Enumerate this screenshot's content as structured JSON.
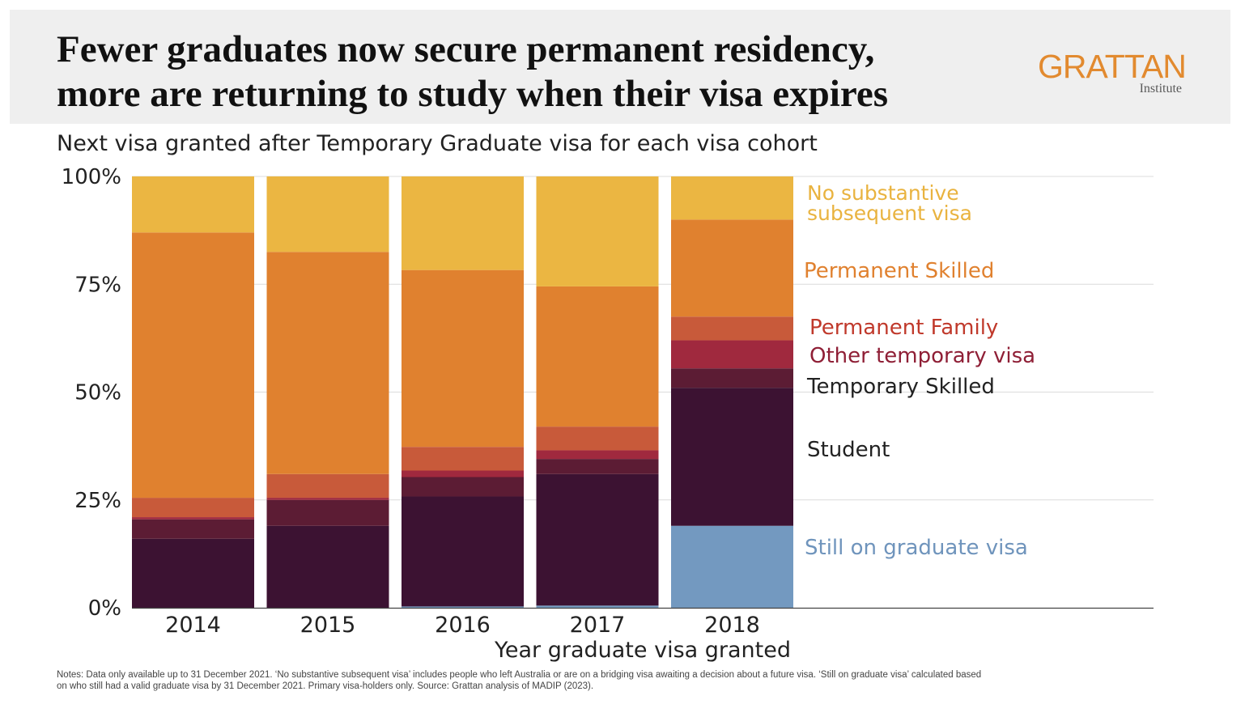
{
  "header": {
    "title_line1": "Fewer graduates now secure permanent residency,",
    "title_line2": "more are returning to study when their visa expires",
    "subtitle": "Next visa granted after Temporary Graduate visa for each visa cohort",
    "logo_text": "GRATTAN",
    "logo_subtext": "Institute"
  },
  "chart_data": {
    "type": "bar",
    "stacked": true,
    "categories": [
      "2014",
      "2015",
      "2016",
      "2017",
      "2018"
    ],
    "xlabel": "Year graduate visa granted",
    "ylabel": "",
    "ylim": [
      0,
      100
    ],
    "yticks": [
      0,
      25,
      50,
      75,
      100
    ],
    "ytick_labels": [
      "0%",
      "25%",
      "50%",
      "75%",
      "100%"
    ],
    "grid": true,
    "legend_placement": "right, inline labels beside 2018 bar",
    "series": [
      {
        "name": "Still on graduate visa",
        "color": "#7399c0",
        "values": [
          0,
          0,
          0.3,
          0.5,
          19
        ]
      },
      {
        "name": "Student",
        "color": "#3c1232",
        "values": [
          16,
          19,
          25.5,
          30.5,
          32
        ]
      },
      {
        "name": "Temporary Skilled",
        "color": "#5c1c34",
        "values": [
          4.5,
          6,
          4.5,
          3.5,
          4.5
        ]
      },
      {
        "name": "Other temporary visa",
        "color": "#a0293e",
        "values": [
          0.5,
          0.5,
          1.5,
          2,
          6.5
        ]
      },
      {
        "name": "Permanent Family",
        "color": "#c85a3a",
        "values": [
          4.5,
          5.5,
          5.5,
          5.5,
          5.5
        ]
      },
      {
        "name": "Permanent Skilled",
        "color": "#e0812f",
        "values": [
          61.5,
          51.5,
          41,
          32.5,
          22.5
        ]
      },
      {
        "name": "No substantive subsequent visa",
        "color": "#ebb642",
        "values": [
          13,
          17.5,
          21.7,
          25.5,
          10
        ]
      }
    ],
    "labels": {
      "no_substantive": [
        "No substantive",
        "subsequent visa"
      ],
      "perm_skilled": "Permanent Skilled",
      "perm_family": "Permanent Family",
      "other_temp": "Other temporary visa",
      "temp_skilled": "Temporary Skilled",
      "student": "Student",
      "still_grad": "Still on graduate visa"
    },
    "label_colors": {
      "no_substantive": "#e9b33f",
      "perm_skilled": "#e0812f",
      "perm_family": "#c0392b",
      "other_temp": "#8f1f36",
      "temp_skilled": "#222222",
      "student": "#222222",
      "still_grad": "#6f94bc"
    }
  },
  "notes": {
    "line1": "Notes: Data only available up to 31 December 2021. ‘No substantive subsequent visa’ includes people who left Australia or are on a bridging visa awaiting a decision about a future visa. ‘Still on graduate visa’ calculated based",
    "line2": "on who still had a valid graduate visa by 31 December 2021. Primary visa-holders only.  Source: Grattan analysis of MADIP (2023)."
  }
}
